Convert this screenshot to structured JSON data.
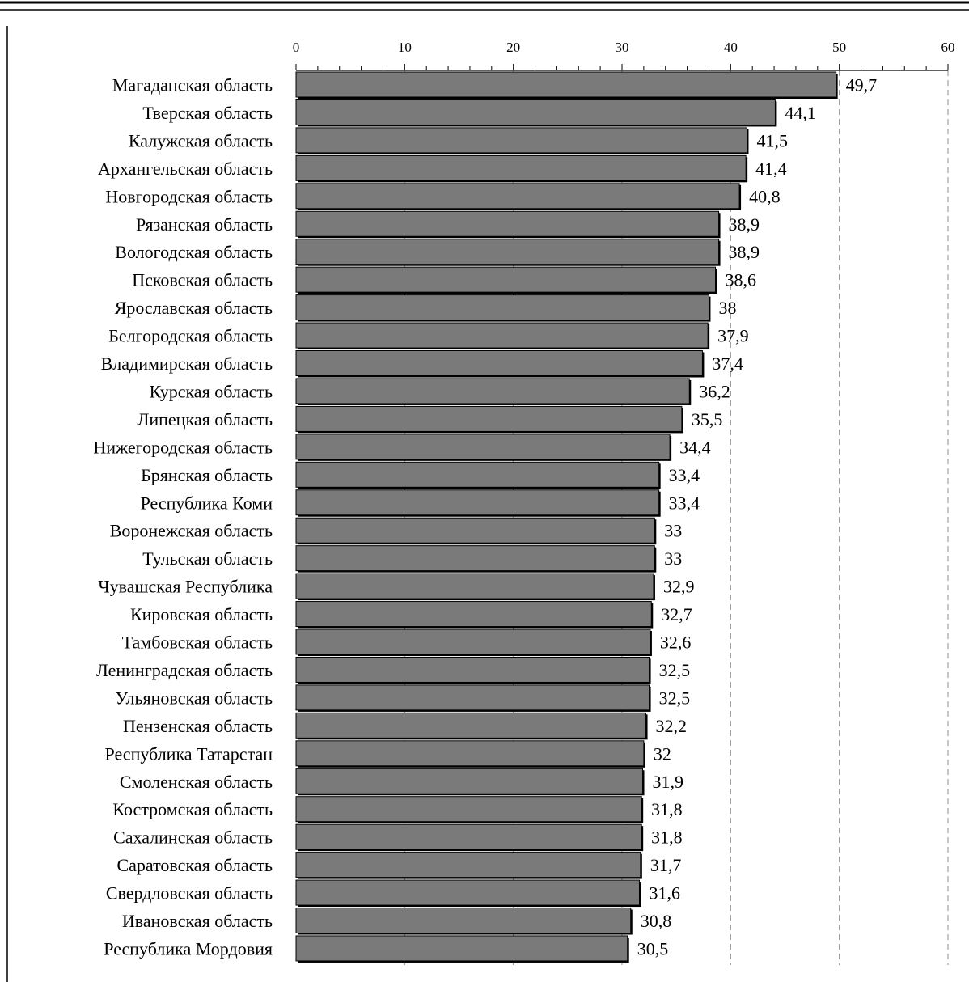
{
  "chart_data": {
    "type": "bar",
    "orientation": "horizontal",
    "title": "",
    "xlabel": "",
    "ylabel": "",
    "xlim": [
      0,
      60
    ],
    "x_ticks": [
      "0",
      "10",
      "20",
      "30",
      "40",
      "50",
      "60"
    ],
    "x_axis_position": "top",
    "grid": "vertical dashed",
    "legend": "none",
    "categories": [
      "Магаданская область",
      "Тверская область",
      "Калужская область",
      "Архангельская область",
      "Новгородская область",
      "Рязанская область",
      "Вологодская область",
      "Псковская область",
      "Ярославская область",
      "Белгородская область",
      "Владимирская область",
      "Курская область",
      "Липецкая область",
      "Нижегородская область",
      "Брянская область",
      "Республика Коми",
      "Воронежская область",
      "Тульская область",
      "Чувашская Республика",
      "Кировская область",
      "Тамбовская область",
      "Ленинградская область",
      "Ульяновская область",
      "Пензенская область",
      "Республика Татарстан",
      "Смоленская область",
      "Костромская область",
      "Сахалинская область",
      "Саратовская область",
      "Свердловская область",
      "Ивановская область",
      "Республика Мордовия"
    ],
    "values": [
      49.7,
      44.1,
      41.5,
      41.4,
      40.8,
      38.9,
      38.9,
      38.6,
      38,
      37.9,
      37.4,
      36.2,
      35.5,
      34.4,
      33.4,
      33.4,
      33,
      33,
      32.9,
      32.7,
      32.6,
      32.5,
      32.5,
      32.2,
      32,
      31.9,
      31.8,
      31.8,
      31.7,
      31.6,
      30.8,
      30.5
    ],
    "value_labels": [
      "49,7",
      "44,1",
      "41,5",
      "41,4",
      "40,8",
      "38,9",
      "38,9",
      "38,6",
      "38",
      "37,9",
      "37,4",
      "36,2",
      "35,5",
      "34,4",
      "33,4",
      "33,4",
      "33",
      "33",
      "32,9",
      "32,7",
      "32,6",
      "32,5",
      "32,5",
      "32,2",
      "32",
      "31,9",
      "31,8",
      "31,8",
      "31,7",
      "31,6",
      "30,8",
      "30,5"
    ],
    "colors": {
      "bar_fill": "#7a7a7a",
      "bar_stroke": "#000000",
      "grid": "#8c8c8c"
    }
  }
}
